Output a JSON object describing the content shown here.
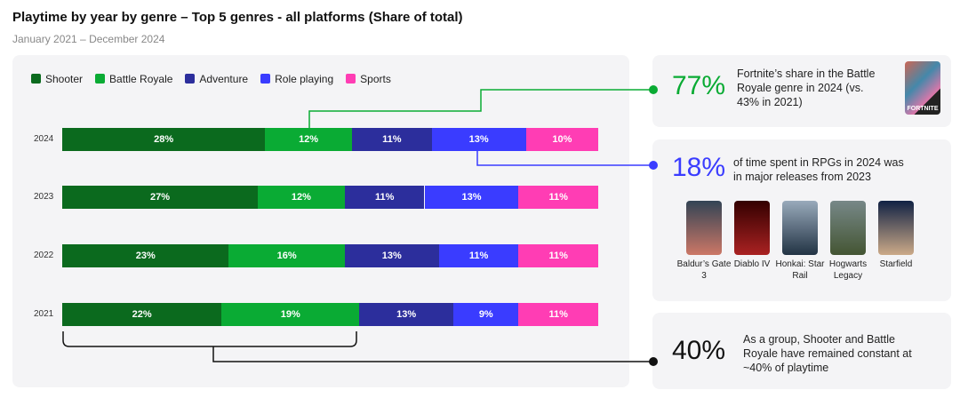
{
  "chart_data": {
    "type": "bar",
    "title": "Playtime by year by genre – Top 5 genres - all platforms (Share of total)",
    "subtitle": "January 2021 – December 2024",
    "categories": [
      "2024",
      "2023",
      "2022",
      "2021"
    ],
    "series": [
      {
        "name": "Shooter",
        "color": "#0b6a1e",
        "values": [
          28,
          27,
          23,
          22
        ]
      },
      {
        "name": "Battle Royale",
        "color": "#0aab34",
        "values": [
          12,
          12,
          16,
          19
        ]
      },
      {
        "name": "Adventure",
        "color": "#2c2e9c",
        "values": [
          11,
          11,
          13,
          13
        ]
      },
      {
        "name": "Role playing",
        "color": "#3a3cff",
        "values": [
          13,
          13,
          11,
          9
        ]
      },
      {
        "name": "Sports",
        "color": "#ff3db4",
        "values": [
          10,
          11,
          11,
          11
        ]
      }
    ],
    "value_suffix": "%",
    "legend": "top-left",
    "stacked": true
  },
  "callouts": [
    {
      "value": "77%",
      "color": "#0aab34",
      "text": "Fortnite’s share in the Battle Royale genre in 2024 (vs. 43% in 2021)",
      "image_label": "FORTNITE"
    },
    {
      "value": "18%",
      "color": "#3a3cff",
      "text": "of time spent in RPGs in 2024 was in major releases from 2023"
    },
    {
      "value": "40%",
      "color": "#111111",
      "text": "As a group, Shooter and Battle Royale have remained constant at ~40% of playtime"
    }
  ],
  "games": [
    "Baldur’s Gate 3",
    "Diablo IV",
    "Honkai: Star Rail",
    "Hogwarts Legacy",
    "Starfield"
  ]
}
